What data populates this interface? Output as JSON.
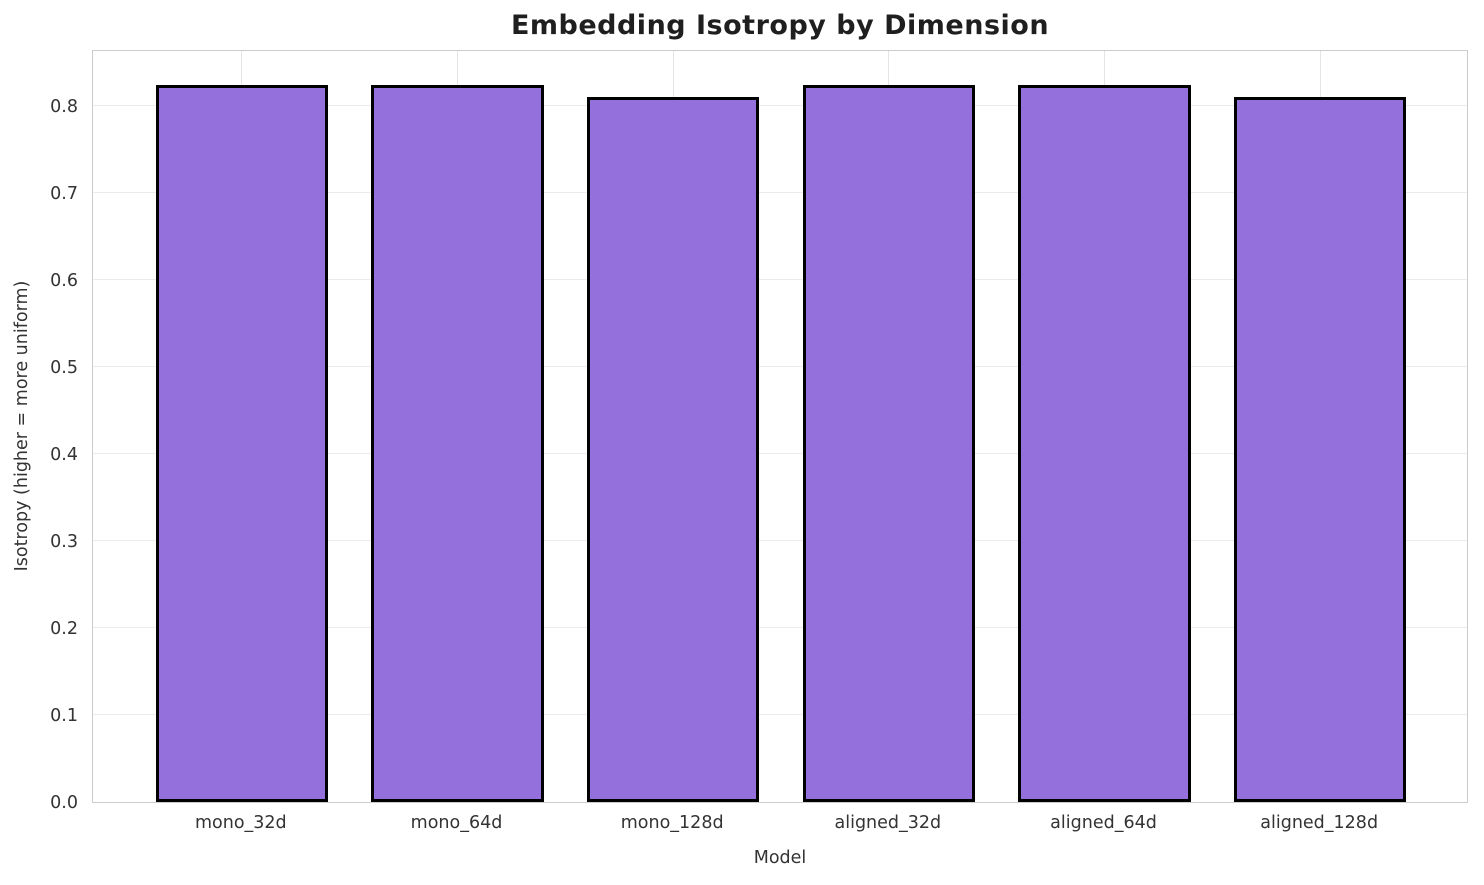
{
  "chart_data": {
    "type": "bar",
    "title": "Embedding Isotropy by Dimension",
    "xlabel": "Model",
    "ylabel": "Isotropy (higher = more uniform)",
    "categories": [
      "mono_32d",
      "mono_64d",
      "mono_128d",
      "aligned_32d",
      "aligned_64d",
      "aligned_128d"
    ],
    "values": [
      0.824,
      0.824,
      0.81,
      0.824,
      0.824,
      0.81
    ],
    "yticks": [
      0.0,
      0.1,
      0.2,
      0.3,
      0.4,
      0.5,
      0.6,
      0.7,
      0.8
    ],
    "ylim": [
      0,
      0.865
    ],
    "grid": true,
    "legend": "none",
    "colors": {
      "bar_fill": "#9370DB",
      "bar_edge": "#000000",
      "grid_h": "#ebebeb",
      "grid_v": "#e4e4e4",
      "spine": "#cccccc",
      "tick_text": "#333333",
      "title_text": "#1f1f1f",
      "background": "#ffffff"
    }
  }
}
